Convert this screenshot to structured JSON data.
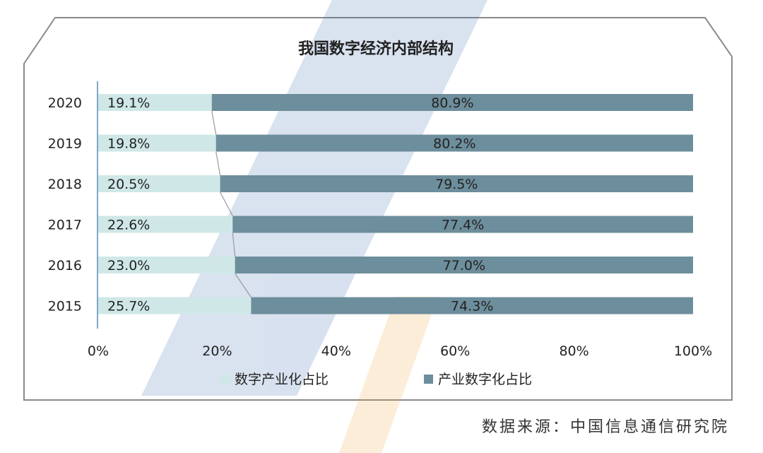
{
  "chart_data": {
    "type": "bar",
    "orientation": "horizontal",
    "stacked": true,
    "title": "我国数字经济内部结构",
    "categories": [
      "2020",
      "2019",
      "2018",
      "2017",
      "2016",
      "2015"
    ],
    "series": [
      {
        "name": "数字产业化占比",
        "values": [
          19.1,
          19.8,
          20.5,
          22.6,
          23.0,
          25.7
        ],
        "labels": [
          "19.1%",
          "19.8%",
          "20.5%",
          "22.6%",
          "23.0%",
          "25.7%"
        ],
        "color": "#cfe8e7"
      },
      {
        "name": "产业数字化占比",
        "values": [
          80.9,
          80.2,
          79.5,
          77.4,
          77.0,
          74.3
        ],
        "labels": [
          "80.9%",
          "80.2%",
          "79.5%",
          "77.4%",
          "77.0%",
          "74.3%"
        ],
        "color": "#6d8e9c"
      }
    ],
    "xlim": [
      0,
      100
    ],
    "xticks": [
      "0%",
      "20%",
      "40%",
      "60%",
      "80%",
      "100%"
    ],
    "grid": false,
    "legend_position": "bottom"
  },
  "source_note": "数据来源：中国信息通信研究院"
}
